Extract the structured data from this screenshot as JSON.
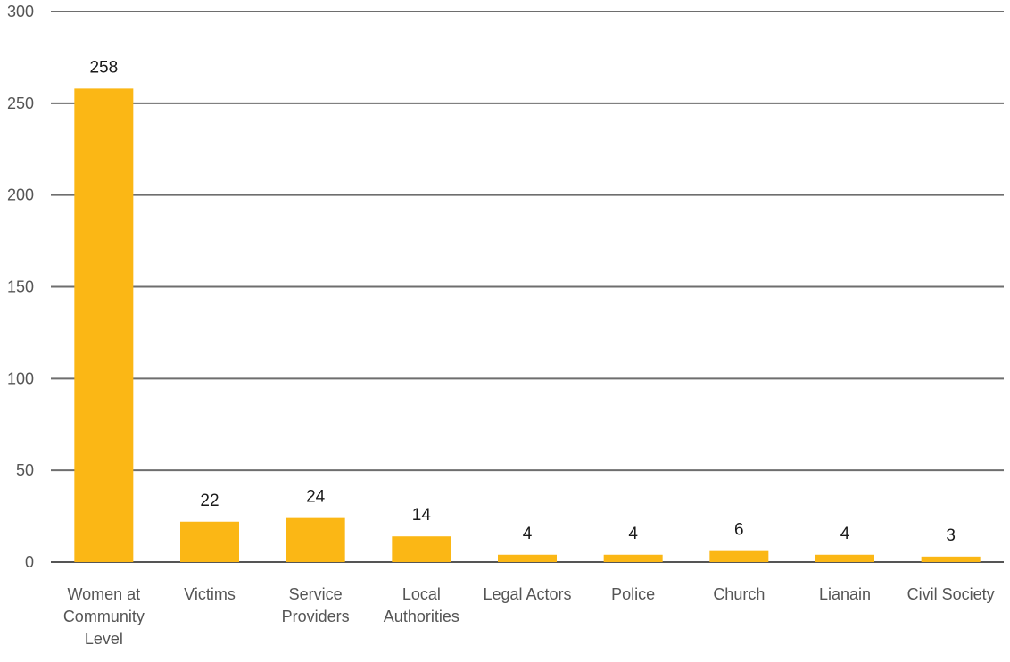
{
  "chart_data": {
    "type": "bar",
    "categories": [
      [
        "Women at",
        "Community",
        "Level"
      ],
      [
        "Victims"
      ],
      [
        "Service",
        "Providers"
      ],
      [
        "Local",
        "Authorities"
      ],
      [
        "Legal Actors"
      ],
      [
        "Police"
      ],
      [
        "Church"
      ],
      [
        "Lianain"
      ],
      [
        "Civil Society"
      ]
    ],
    "values": [
      258,
      22,
      24,
      14,
      4,
      4,
      6,
      4,
      3
    ],
    "ylim": [
      0,
      300
    ],
    "yticks": [
      0,
      50,
      100,
      150,
      200,
      250,
      300
    ],
    "grid": true,
    "legend": "none",
    "bar_color": "#FBB715"
  }
}
